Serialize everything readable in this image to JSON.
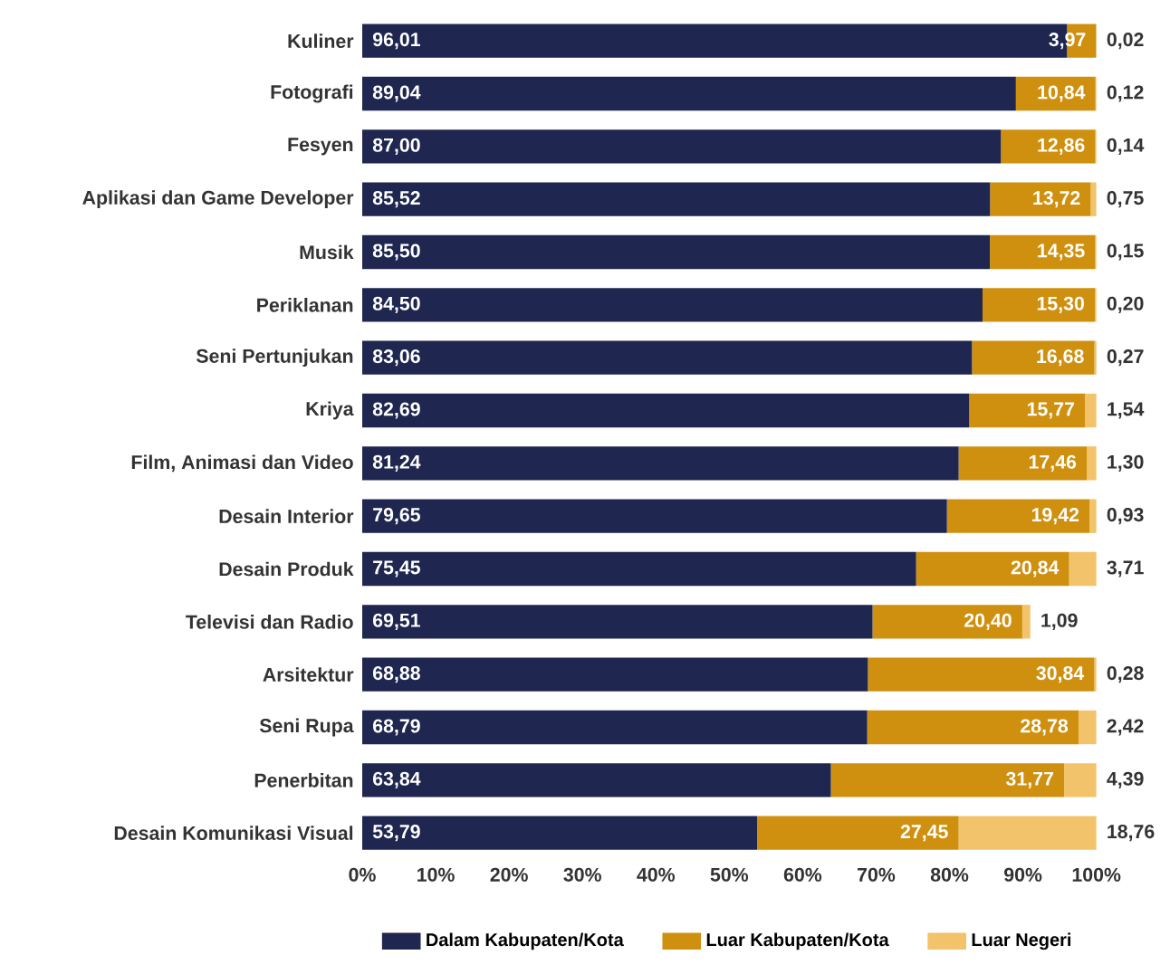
{
  "chart_data": {
    "type": "bar",
    "orientation": "horizontal",
    "stacked": true,
    "legend": "bottom",
    "categories": [
      "Kuliner",
      "Fotografi",
      "Fesyen",
      "Aplikasi dan Game Developer",
      "Musik",
      "Periklanan",
      "Seni Pertunjukan",
      "Kriya",
      "Film, Animasi dan Video",
      "Desain Interior",
      "Desain Produk",
      "Televisi dan Radio",
      "Arsitektur",
      "Seni Rupa",
      "Penerbitan",
      "Desain Komunikasi Visual"
    ],
    "xlim": [
      0,
      100
    ],
    "xticks": [
      {
        "value": 0,
        "label": "0%"
      },
      {
        "value": 10,
        "label": "10%"
      },
      {
        "value": 20,
        "label": "20%"
      },
      {
        "value": 30,
        "label": "30%"
      },
      {
        "value": 40,
        "label": "40%"
      },
      {
        "value": 50,
        "label": "50%"
      },
      {
        "value": 60,
        "label": "60%"
      },
      {
        "value": 70,
        "label": "70%"
      },
      {
        "value": 80,
        "label": "80%"
      },
      {
        "value": 90,
        "label": "90%"
      },
      {
        "value": 100,
        "label": "100%"
      }
    ],
    "series": [
      {
        "name": "Dalam Kabupaten/Kota",
        "color": "#1f2650",
        "values": [
          96.01,
          89.04,
          87.0,
          85.52,
          85.5,
          84.5,
          83.06,
          82.69,
          81.24,
          79.65,
          75.45,
          69.51,
          68.88,
          68.79,
          63.84,
          53.79
        ],
        "value_labels": [
          "96,01",
          "89,04",
          "87,00",
          "85,52",
          "85,50",
          "84,50",
          "83,06",
          "82,69",
          "81,24",
          "79,65",
          "75,45",
          "69,51",
          "68,88",
          "68,79",
          "63,84",
          "53,79"
        ]
      },
      {
        "name": "Luar Kabupaten/Kota",
        "color": "#d0900f",
        "values": [
          3.97,
          10.84,
          12.86,
          13.72,
          14.35,
          15.3,
          16.68,
          15.77,
          17.46,
          19.42,
          20.84,
          20.4,
          30.84,
          28.78,
          31.77,
          27.45
        ],
        "value_labels": [
          "3,97",
          "10,84",
          "12,86",
          "13,72",
          "14,35",
          "15,30",
          "16,68",
          "15,77",
          "17,46",
          "19,42",
          "20,84",
          "20,40",
          "30,84",
          "28,78",
          "31,77",
          "27,45"
        ]
      },
      {
        "name": "Luar Negeri",
        "color": "#f2c36a",
        "values": [
          0.02,
          0.12,
          0.14,
          0.75,
          0.15,
          0.2,
          0.27,
          1.54,
          1.3,
          0.93,
          3.71,
          1.09,
          0.28,
          2.42,
          4.39,
          18.76
        ],
        "value_labels": [
          "0,02",
          "0,12",
          "0,14",
          "0,75",
          "0,15",
          "0,20",
          "0,27",
          "1,54",
          "1,30",
          "0,93",
          "3,71",
          "1,09",
          "0,28",
          "2,42",
          "4,39",
          "18,76"
        ]
      }
    ]
  }
}
